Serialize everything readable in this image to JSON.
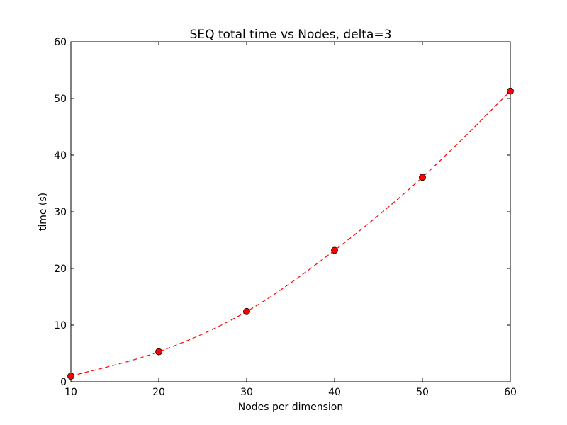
{
  "chart_data": {
    "type": "line",
    "title": "SEQ total time vs Nodes, delta=3",
    "xlabel": "Nodes per dimension",
    "ylabel": "time (s)",
    "xlim": [
      10,
      60
    ],
    "ylim": [
      0,
      60
    ],
    "xticks": [
      10,
      20,
      30,
      40,
      50,
      60
    ],
    "yticks": [
      0,
      10,
      20,
      30,
      40,
      50,
      60
    ],
    "grid": false,
    "series": [
      {
        "x": [
          10,
          20,
          30,
          40,
          50,
          60
        ],
        "y": [
          1.0,
          5.3,
          12.4,
          23.2,
          36.1,
          51.3
        ],
        "color": "#ff0000",
        "line_style": "dashed",
        "marker": "circle"
      }
    ]
  }
}
